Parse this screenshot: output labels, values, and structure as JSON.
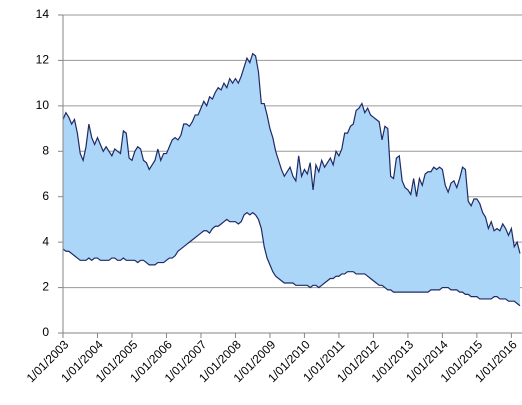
{
  "chart_data": {
    "type": "range-area",
    "categories": [
      "1/01/2003",
      null,
      null,
      null,
      null,
      null,
      null,
      null,
      null,
      null,
      null,
      null,
      "1/01/2004",
      null,
      null,
      null,
      null,
      null,
      null,
      null,
      null,
      null,
      null,
      null,
      "1/01/2005",
      null,
      null,
      null,
      null,
      null,
      null,
      null,
      null,
      null,
      null,
      null,
      "1/01/2006",
      null,
      null,
      null,
      null,
      null,
      null,
      null,
      null,
      null,
      null,
      null,
      "1/01/2007",
      null,
      null,
      null,
      null,
      null,
      null,
      null,
      null,
      null,
      null,
      null,
      "1/01/2008",
      null,
      null,
      null,
      null,
      null,
      null,
      null,
      null,
      null,
      null,
      null,
      "1/01/2009",
      null,
      null,
      null,
      null,
      null,
      null,
      null,
      null,
      null,
      null,
      null,
      "1/01/2010",
      null,
      null,
      null,
      null,
      null,
      null,
      null,
      null,
      null,
      null,
      null,
      "1/01/2011",
      null,
      null,
      null,
      null,
      null,
      null,
      null,
      null,
      null,
      null,
      null,
      "1/01/2012",
      null,
      null,
      null,
      null,
      null,
      null,
      null,
      null,
      null,
      null,
      null,
      "1/01/2013",
      null,
      null,
      null,
      null,
      null,
      null,
      null,
      null,
      null,
      null,
      null,
      "1/01/2014",
      null,
      null,
      null,
      null,
      null,
      null,
      null,
      null,
      null,
      null,
      null,
      "1/01/2015",
      null,
      null,
      null,
      null,
      null,
      null,
      null,
      null,
      null,
      null,
      null,
      "1/01/2016",
      null,
      null,
      null
    ],
    "series": [
      {
        "color": "#1f2a66",
        "values": [
          3.7,
          3.6,
          3.6,
          3.5,
          3.4,
          3.3,
          3.2,
          3.2,
          3.2,
          3.3,
          3.2,
          3.3,
          3.3,
          3.2,
          3.2,
          3.2,
          3.2,
          3.3,
          3.3,
          3.2,
          3.2,
          3.3,
          3.2,
          3.2,
          3.2,
          3.2,
          3.1,
          3.2,
          3.2,
          3.1,
          3.0,
          3.0,
          3.0,
          3.1,
          3.1,
          3.1,
          3.2,
          3.3,
          3.3,
          3.4,
          3.6,
          3.7,
          3.8,
          3.9,
          4.0,
          4.1,
          4.2,
          4.3,
          4.4,
          4.5,
          4.5,
          4.4,
          4.6,
          4.7,
          4.7,
          4.8,
          4.9,
          5.0,
          4.9,
          4.9,
          4.9,
          4.8,
          4.9,
          5.2,
          5.3,
          5.2,
          5.3,
          5.2,
          5.0,
          4.6,
          3.8,
          3.3,
          3.0,
          2.7,
          2.5,
          2.4,
          2.3,
          2.2,
          2.2,
          2.2,
          2.2,
          2.1,
          2.1,
          2.1,
          2.1,
          2.1,
          2.0,
          2.1,
          2.1,
          2.0,
          2.1,
          2.2,
          2.3,
          2.4,
          2.4,
          2.5,
          2.5,
          2.6,
          2.6,
          2.7,
          2.7,
          2.7,
          2.6,
          2.6,
          2.6,
          2.6,
          2.5,
          2.4,
          2.3,
          2.2,
          2.1,
          2.1,
          2.0,
          1.9,
          1.9,
          1.8,
          1.8,
          1.8,
          1.8,
          1.8,
          1.8,
          1.8,
          1.8,
          1.8,
          1.8,
          1.8,
          1.8,
          1.8,
          1.9,
          1.9,
          1.9,
          1.9,
          2.0,
          2.0,
          2.0,
          1.9,
          1.9,
          1.9,
          1.8,
          1.8,
          1.7,
          1.7,
          1.6,
          1.6,
          1.6,
          1.5,
          1.5,
          1.5,
          1.5,
          1.5,
          1.6,
          1.6,
          1.5,
          1.5,
          1.5,
          1.4,
          1.4,
          1.4,
          1.3,
          1.2
        ]
      },
      {
        "color": "#1f2a66",
        "values": [
          9.4,
          9.7,
          9.5,
          9.2,
          9.4,
          8.8,
          7.9,
          7.6,
          8.2,
          9.2,
          8.6,
          8.3,
          8.6,
          8.3,
          8.0,
          8.2,
          8.0,
          7.8,
          8.1,
          8.0,
          7.9,
          8.9,
          8.8,
          7.7,
          7.6,
          8.0,
          8.2,
          8.1,
          7.6,
          7.5,
          7.2,
          7.4,
          7.6,
          8.1,
          7.6,
          7.9,
          7.9,
          8.2,
          8.5,
          8.6,
          8.5,
          8.7,
          9.2,
          9.2,
          9.1,
          9.3,
          9.6,
          9.6,
          9.9,
          10.2,
          10.0,
          10.4,
          10.3,
          10.6,
          10.8,
          10.7,
          11.0,
          10.8,
          11.2,
          11.0,
          11.2,
          11.0,
          11.3,
          11.7,
          12.1,
          11.9,
          12.3,
          12.2,
          11.5,
          10.1,
          10.1,
          9.6,
          9.0,
          8.6,
          8.0,
          7.6,
          7.2,
          6.9,
          7.1,
          7.3,
          6.9,
          6.7,
          7.8,
          6.9,
          7.2,
          7.0,
          7.5,
          6.3,
          7.4,
          7.1,
          7.6,
          7.3,
          7.5,
          7.7,
          7.4,
          8.0,
          7.8,
          8.1,
          8.8,
          8.8,
          9.1,
          9.2,
          9.8,
          9.9,
          10.1,
          9.7,
          9.9,
          9.6,
          9.5,
          9.4,
          9.3,
          8.5,
          9.1,
          9.0,
          6.9,
          6.8,
          7.7,
          7.8,
          6.7,
          6.4,
          6.3,
          6.1,
          6.8,
          6.0,
          6.8,
          6.5,
          7.0,
          7.1,
          7.1,
          7.3,
          7.2,
          7.3,
          7.2,
          6.5,
          6.2,
          6.6,
          6.7,
          6.4,
          6.8,
          7.3,
          7.2,
          5.8,
          5.6,
          5.9,
          5.9,
          5.7,
          5.3,
          5.1,
          4.6,
          4.9,
          4.5,
          4.6,
          4.5,
          4.8,
          4.6,
          4.3,
          4.6,
          3.8,
          4.0,
          3.5
        ]
      }
    ],
    "fill_color": "#acd6f7",
    "ylim": [
      0,
      14
    ],
    "yticks": [
      0,
      2,
      4,
      6,
      8,
      10,
      12,
      14
    ],
    "grid": true
  }
}
